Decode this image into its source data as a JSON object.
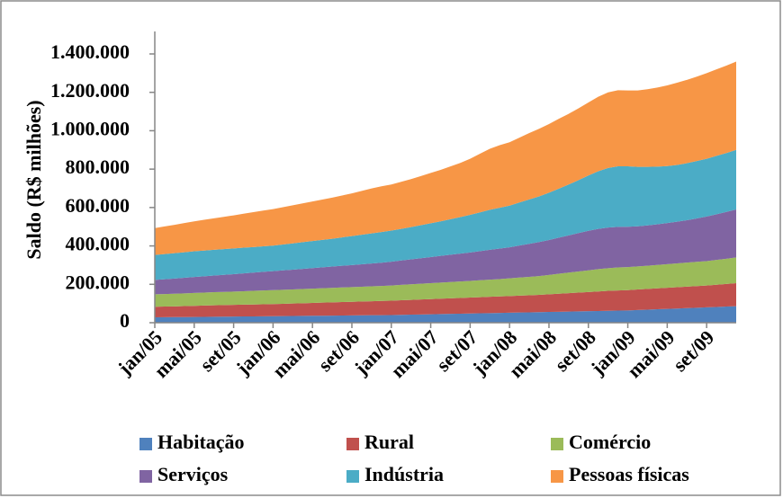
{
  "chart_data": {
    "type": "stacked_area",
    "ylabel": "Saldo (R$ milhões)",
    "categories": [
      "jan/05",
      null,
      null,
      null,
      "mai/05",
      null,
      null,
      null,
      "set/05",
      null,
      null,
      null,
      "jan/06",
      null,
      null,
      null,
      "mai/06",
      null,
      null,
      null,
      "set/06",
      null,
      null,
      null,
      "jan/07",
      null,
      null,
      null,
      "mai/07",
      null,
      null,
      null,
      "set/07",
      null,
      null,
      null,
      "jan/08",
      null,
      null,
      null,
      "mai/08",
      null,
      null,
      null,
      "set/08",
      null,
      null,
      null,
      "jan/09",
      null,
      null,
      null,
      "mai/09",
      null,
      null,
      null,
      "set/09",
      null,
      null,
      null
    ],
    "ylim": [
      0,
      1400000
    ],
    "yticks": [
      0,
      {
        "value": 200000,
        "label": "200.000"
      },
      {
        "value": 400000,
        "label": "400.000"
      },
      {
        "value": 600000,
        "label": "600.000"
      },
      {
        "value": 800000,
        "label": "800.000"
      },
      {
        "value": 1000000,
        "label": "1.000.000"
      },
      {
        "value": 1200000,
        "label": "1.200.000"
      },
      {
        "value": 1400000,
        "label": "1.400.000"
      }
    ],
    "grid": false,
    "legend": "bottom",
    "series": [
      {
        "name": "Habitação",
        "color": "#4f81bd",
        "values": [
          28000,
          28500,
          29000,
          29500,
          30000,
          30500,
          31000,
          31500,
          32000,
          32500,
          33000,
          33500,
          34000,
          34500,
          35000,
          35500,
          36000,
          36500,
          37000,
          37500,
          38000,
          38500,
          39000,
          39500,
          40000,
          41000,
          42000,
          43000,
          44000,
          45000,
          46000,
          47000,
          48000,
          49000,
          50000,
          51000,
          52000,
          53000,
          54000,
          55000,
          56000,
          57000,
          58000,
          59000,
          60000,
          61000,
          62000,
          63000,
          64000,
          66000,
          68000,
          70000,
          72000,
          74000,
          76000,
          78000,
          80000,
          82000,
          84000,
          86000
        ]
      },
      {
        "name": "Rural",
        "color": "#c0504d",
        "values": [
          55000,
          55500,
          56000,
          57000,
          58000,
          59000,
          60000,
          60500,
          61000,
          61500,
          62000,
          62500,
          63000,
          64000,
          65000,
          66000,
          67000,
          68000,
          69000,
          70000,
          71000,
          72000,
          73000,
          74000,
          75000,
          76000,
          77000,
          78000,
          79000,
          80000,
          81000,
          82000,
          83000,
          84000,
          85000,
          86000,
          87000,
          88000,
          89000,
          90000,
          92000,
          94000,
          96000,
          98000,
          100000,
          102000,
          104000,
          105000,
          106000,
          107000,
          108000,
          109000,
          110000,
          111000,
          112000,
          113000,
          114000,
          116000,
          118000,
          120000
        ]
      },
      {
        "name": "Comércio",
        "color": "#9bbb59",
        "values": [
          65000,
          65500,
          66000,
          66500,
          67000,
          67500,
          68000,
          68500,
          69000,
          70000,
          71000,
          72000,
          72500,
          73000,
          73500,
          74000,
          74500,
          75000,
          75500,
          76000,
          76500,
          77000,
          77500,
          78000,
          79000,
          80000,
          81000,
          82000,
          83000,
          84000,
          85000,
          86000,
          87000,
          88000,
          89000,
          90000,
          92000,
          94000,
          96000,
          98000,
          101000,
          104000,
          107000,
          110000,
          113000,
          116000,
          118000,
          120000,
          120000,
          120000,
          121000,
          122000,
          123000,
          124000,
          125000,
          126000,
          127000,
          129000,
          131000,
          134000
        ]
      },
      {
        "name": "Serviços",
        "color": "#8064a2",
        "values": [
          75000,
          77000,
          79000,
          81000,
          83000,
          85000,
          87000,
          89000,
          91000,
          93000,
          95000,
          97000,
          99000,
          101000,
          103000,
          105000,
          107000,
          109000,
          111000,
          113000,
          115000,
          117000,
          119000,
          121000,
          124000,
          127000,
          130000,
          133000,
          136000,
          139000,
          142000,
          145000,
          148000,
          152000,
          156000,
          159000,
          162000,
          167000,
          172000,
          177000,
          182000,
          188000,
          194000,
          200000,
          206000,
          210000,
          212000,
          211000,
          210000,
          209000,
          210000,
          212000,
          214000,
          217000,
          221000,
          226000,
          232000,
          238000,
          244000,
          250000
        ]
      },
      {
        "name": "Indústria",
        "color": "#4bacc6",
        "values": [
          130000,
          131000,
          132000,
          133000,
          134000,
          134000,
          134000,
          134000,
          134000,
          134000,
          133000,
          133000,
          133000,
          135000,
          137000,
          139000,
          141000,
          143000,
          145000,
          148000,
          151000,
          154000,
          157000,
          160000,
          162000,
          165000,
          168000,
          172000,
          176000,
          180000,
          185000,
          190000,
          196000,
          202000,
          208000,
          213000,
          217000,
          224000,
          231000,
          238000,
          246000,
          255000,
          265000,
          276000,
          288000,
          300000,
          310000,
          316000,
          315000,
          310000,
          305000,
          300000,
          297000,
          296000,
          297000,
          299000,
          301000,
          304000,
          307000,
          310000
        ]
      },
      {
        "name": "Pessoas físicas",
        "color": "#f79646",
        "values": [
          140000,
          144000,
          148000,
          152000,
          156000,
          160000,
          164000,
          168000,
          172000,
          177000,
          182000,
          186000,
          190000,
          194000,
          198000,
          202000,
          206000,
          210000,
          214000,
          218000,
          222000,
          228000,
          234000,
          238000,
          240000,
          245000,
          250000,
          256000,
          262000,
          268000,
          275000,
          282000,
          292000,
          305000,
          318000,
          326000,
          330000,
          338000,
          346000,
          352000,
          358000,
          364000,
          368000,
          374000,
          380000,
          388000,
          394000,
          396000,
          395000,
          398000,
          404000,
          412000,
          420000,
          428000,
          434000,
          440000,
          446000,
          451000,
          455000,
          460000
        ]
      }
    ]
  }
}
